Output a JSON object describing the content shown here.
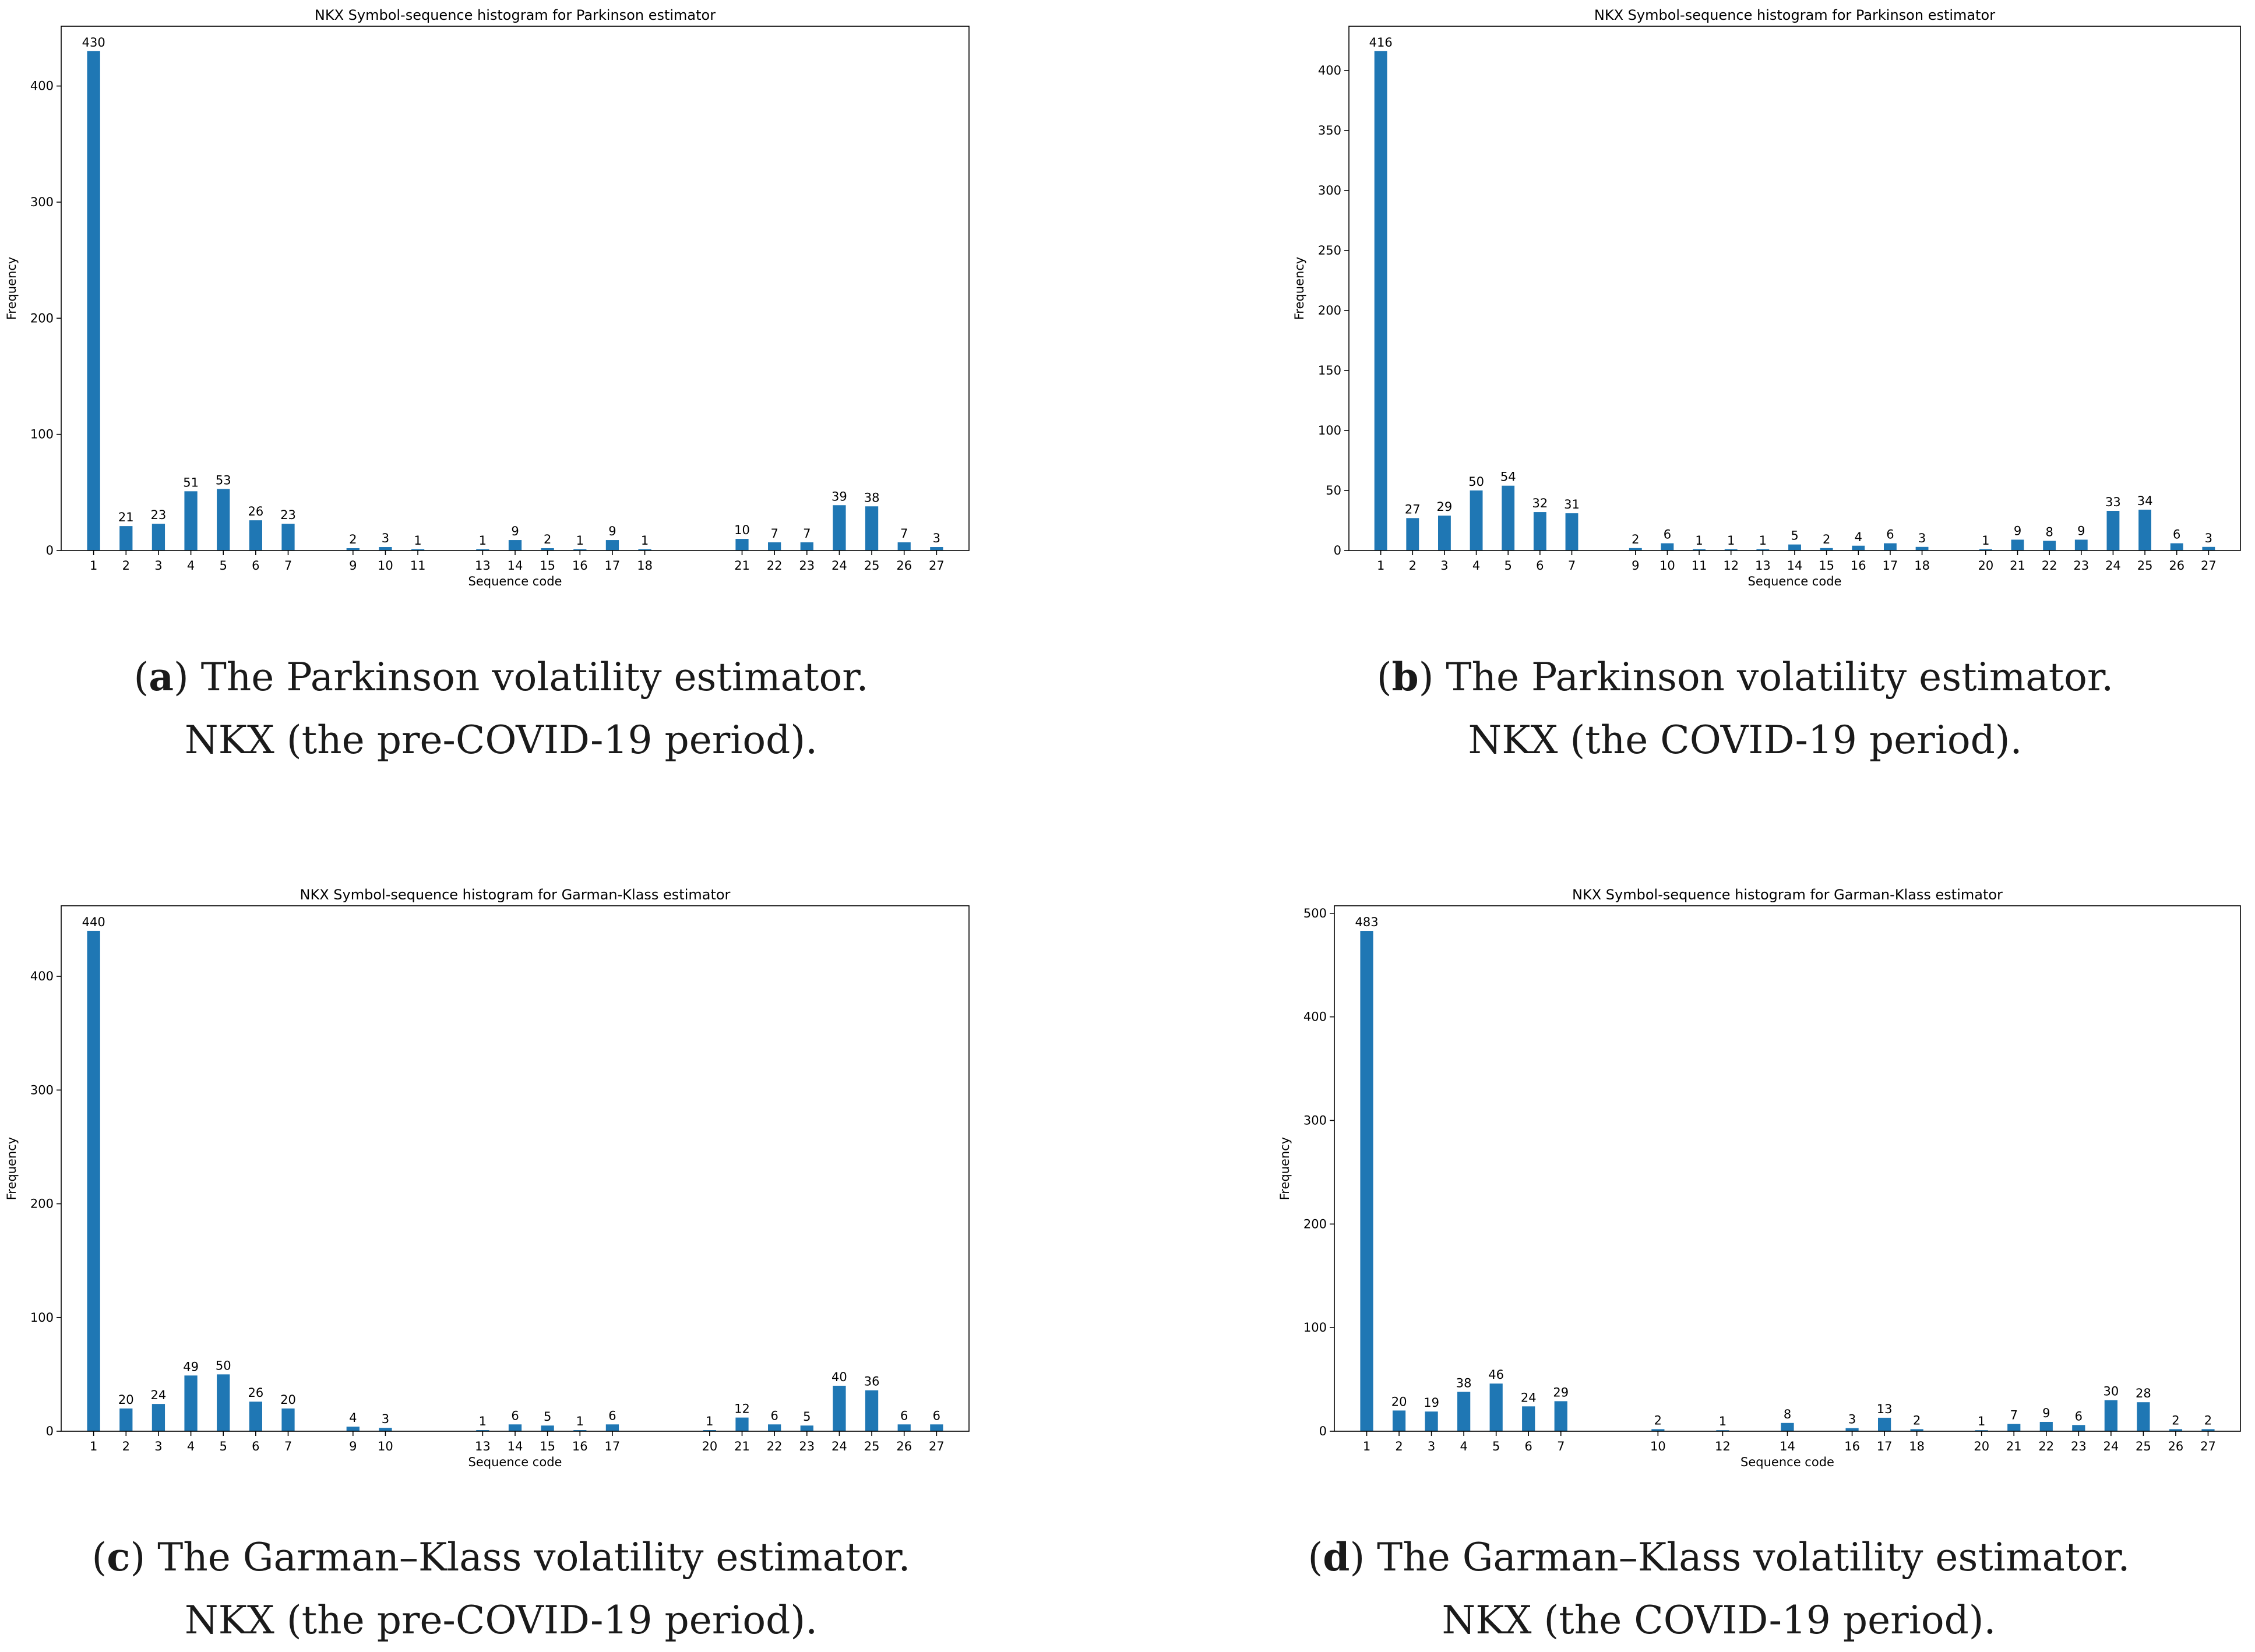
{
  "colors": {
    "bar": "#1f77b4",
    "axis": "#000000",
    "text": "#000000"
  },
  "panels": [
    {
      "letter": "a",
      "caption_line1": " The Parkinson volatility estimator.",
      "caption_line2": "NKX (the pre-COVID-19 period).",
      "chart_data": {
        "type": "bar",
        "title": "NKX Symbol-sequence histogram for Parkinson estimator",
        "xlabel": "Sequence code",
        "ylabel": "Frequency",
        "ylim": [
          0,
          451.5
        ],
        "yticks": [
          0,
          100,
          200,
          300,
          400
        ],
        "xlim": [
          0,
          28
        ],
        "grid": false,
        "categories": [
          1,
          2,
          3,
          4,
          5,
          6,
          7,
          9,
          10,
          11,
          13,
          14,
          15,
          16,
          17,
          18,
          21,
          22,
          23,
          24,
          25,
          26,
          27
        ],
        "values": [
          430,
          21,
          23,
          51,
          53,
          26,
          23,
          2,
          3,
          1,
          1,
          9,
          2,
          1,
          9,
          1,
          10,
          7,
          7,
          39,
          38,
          7,
          3
        ]
      }
    },
    {
      "letter": "b",
      "caption_line1": " The Parkinson volatility estimator.",
      "caption_line2": "NKX (the COVID-19 period).",
      "chart_data": {
        "type": "bar",
        "title": "NKX Symbol-sequence histogram for Parkinson estimator",
        "xlabel": "Sequence code",
        "ylabel": "Frequency",
        "ylim": [
          0,
          436.8
        ],
        "yticks": [
          0,
          50,
          100,
          150,
          200,
          250,
          300,
          350,
          400
        ],
        "xlim": [
          0,
          28
        ],
        "grid": false,
        "categories": [
          1,
          2,
          3,
          4,
          5,
          6,
          7,
          9,
          10,
          11,
          12,
          13,
          14,
          15,
          16,
          17,
          18,
          20,
          21,
          22,
          23,
          24,
          25,
          26,
          27
        ],
        "values": [
          416,
          27,
          29,
          50,
          54,
          32,
          31,
          2,
          6,
          1,
          1,
          1,
          5,
          2,
          4,
          6,
          3,
          1,
          9,
          8,
          9,
          33,
          34,
          6,
          3
        ]
      }
    },
    {
      "letter": "c",
      "caption_line1": " The Garman–Klass volatility estimator.",
      "caption_line2": "NKX (the pre-COVID-19 period).",
      "chart_data": {
        "type": "bar",
        "title": "NKX Symbol-sequence histogram for Garman-Klass estimator",
        "xlabel": "Sequence code",
        "ylabel": "Frequency",
        "ylim": [
          0,
          462
        ],
        "yticks": [
          0,
          100,
          200,
          300,
          400
        ],
        "xlim": [
          0,
          28
        ],
        "grid": false,
        "categories": [
          1,
          2,
          3,
          4,
          5,
          6,
          7,
          9,
          10,
          13,
          14,
          15,
          16,
          17,
          20,
          21,
          22,
          23,
          24,
          25,
          26,
          27
        ],
        "values": [
          440,
          20,
          24,
          49,
          50,
          26,
          20,
          4,
          3,
          1,
          6,
          5,
          1,
          6,
          1,
          12,
          6,
          5,
          40,
          36,
          6,
          6
        ]
      }
    },
    {
      "letter": "d",
      "caption_line1": " The Garman–Klass volatility estimator.",
      "caption_line2": "NKX (the COVID-19 period).",
      "chart_data": {
        "type": "bar",
        "title": "NKX Symbol-sequence histogram for Garman-Klass estimator",
        "xlabel": "Sequence code",
        "ylabel": "Frequency",
        "ylim": [
          0,
          507.2
        ],
        "yticks": [
          0,
          100,
          200,
          300,
          400,
          500
        ],
        "xlim": [
          0,
          28
        ],
        "grid": false,
        "categories": [
          1,
          2,
          3,
          4,
          5,
          6,
          7,
          10,
          12,
          14,
          16,
          17,
          18,
          20,
          21,
          22,
          23,
          24,
          25,
          26,
          27
        ],
        "values": [
          483,
          20,
          19,
          38,
          46,
          24,
          29,
          2,
          1,
          8,
          3,
          13,
          2,
          1,
          7,
          9,
          6,
          30,
          28,
          2,
          2
        ]
      }
    }
  ]
}
